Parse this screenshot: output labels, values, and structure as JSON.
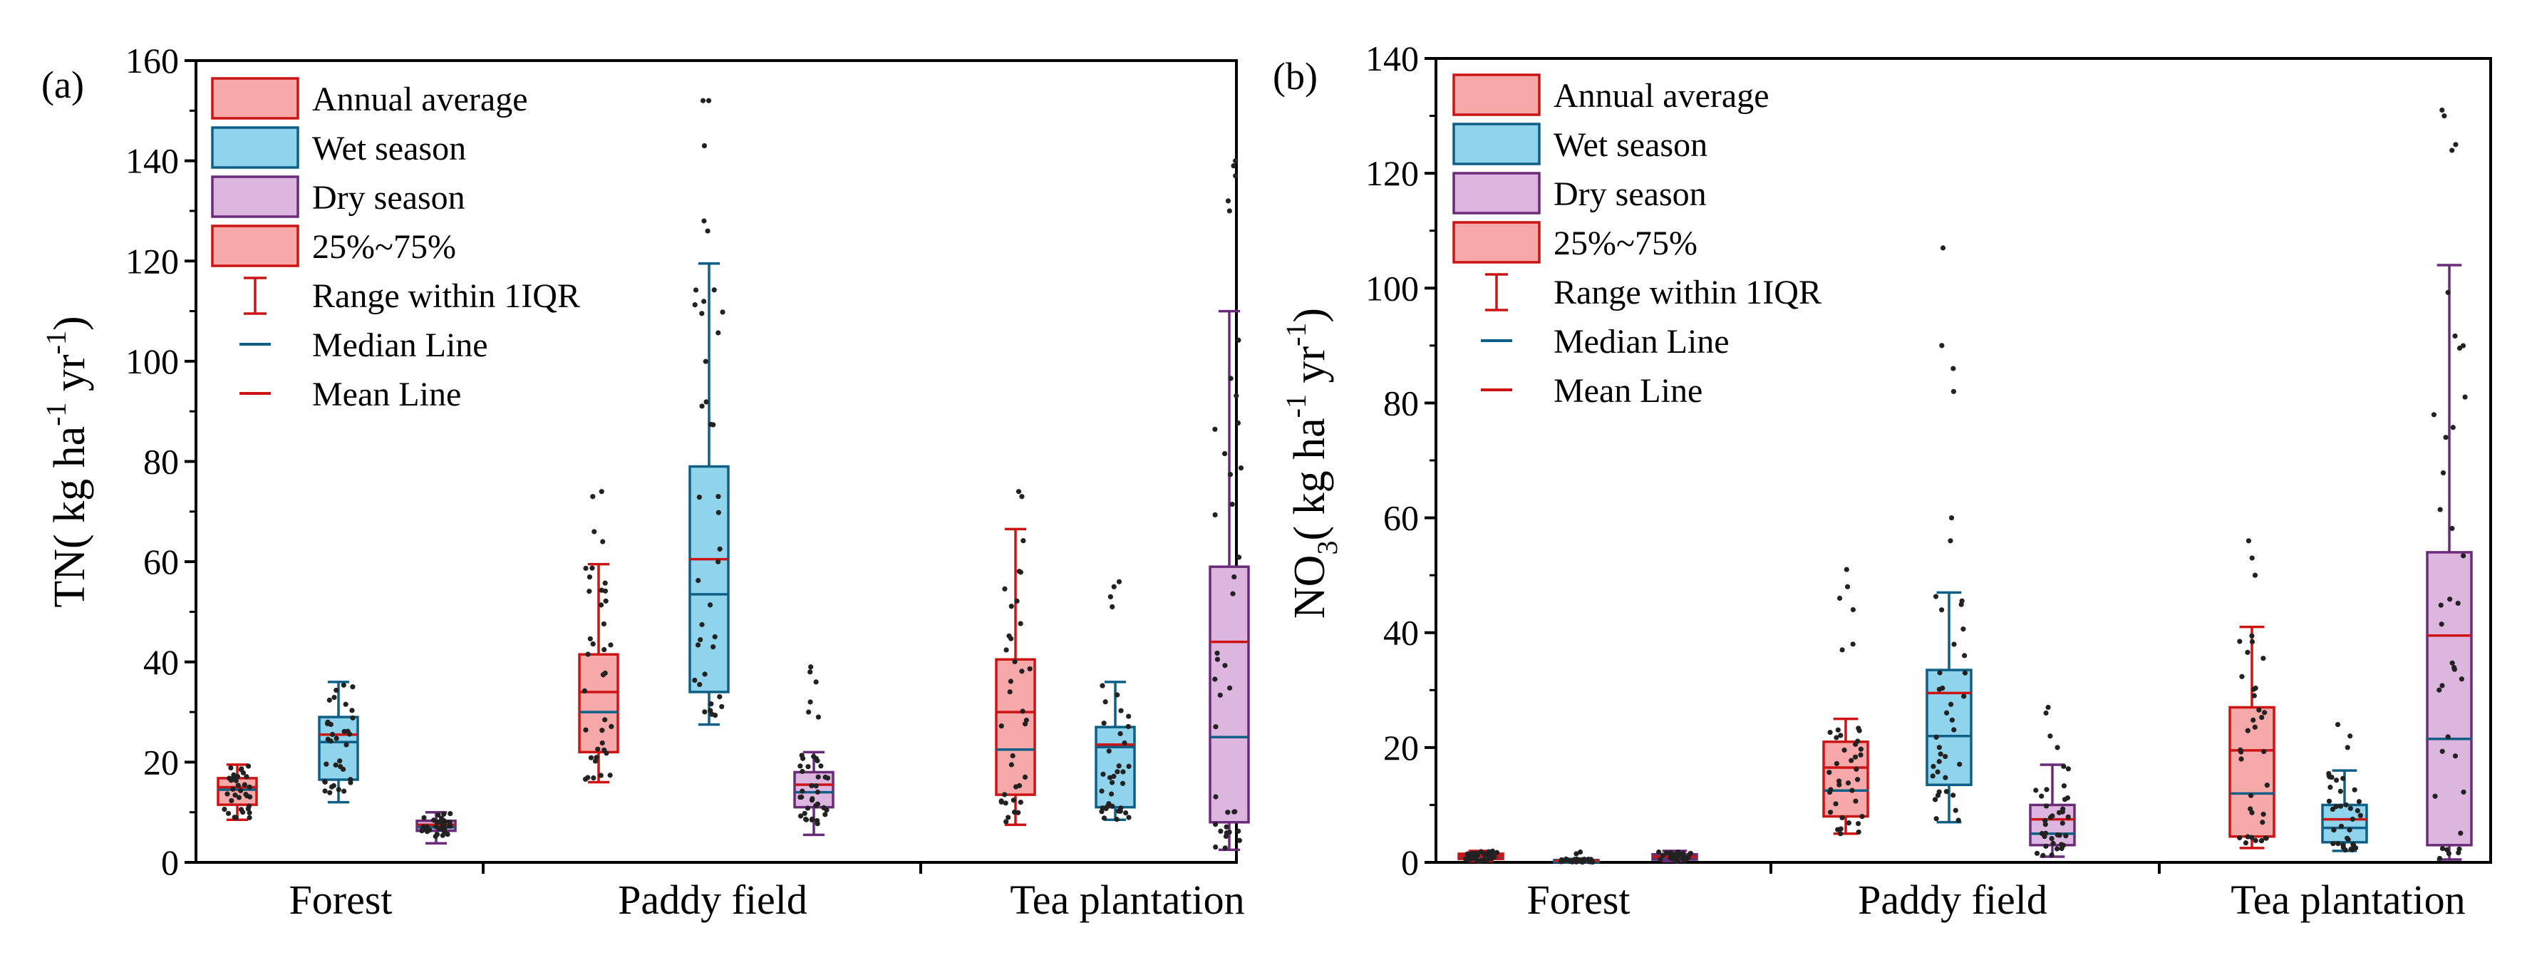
{
  "colors": {
    "annual_fill": "#f7a8a8",
    "annual_edge": "#cc1414",
    "wet_fill": "#8fd3ec",
    "wet_edge": "#0e5f86",
    "dry_fill": "#dcb6df",
    "dry_edge": "#6a2c79",
    "median": "#0e5f86",
    "mean": "#cc1414",
    "point": "#222222"
  },
  "legend": {
    "annual": "Annual average",
    "wet": "Wet season",
    "dry": "Dry season",
    "iqr": "25%~75%",
    "range": "Range within 1IQR",
    "median": "Median Line",
    "mean": "Mean Line"
  },
  "chart_data": [
    {
      "panel_label": "(a)",
      "type": "box",
      "ylabel": {
        "main": "TN( kg ha",
        "sup1": "-1",
        "mid": " yr",
        "sup2": "-1",
        "end": ")"
      },
      "ylim": [
        0,
        160
      ],
      "yticks": [
        0,
        20,
        40,
        60,
        80,
        100,
        120,
        140,
        160
      ],
      "categories": [
        "Forest",
        "Paddy field",
        "Tea plantation"
      ],
      "series": [
        "Annual average",
        "Wet season",
        "Dry season"
      ],
      "boxes": [
        {
          "cat": 0,
          "series": 0,
          "q1": 11.5,
          "median": 14.5,
          "mean": 15.0,
          "q3": 16.8,
          "wlo": 8.5,
          "whi": 19.5,
          "outliers": []
        },
        {
          "cat": 0,
          "series": 1,
          "q1": 16.5,
          "median": 24.0,
          "mean": 25.5,
          "q3": 29.0,
          "wlo": 12.0,
          "whi": 36.0,
          "outliers": []
        },
        {
          "cat": 0,
          "series": 2,
          "q1": 6.3,
          "median": 7.0,
          "mean": 7.5,
          "q3": 8.3,
          "wlo": 3.8,
          "whi": 10.0,
          "outliers": []
        },
        {
          "cat": 1,
          "series": 0,
          "q1": 22.0,
          "median": 30.0,
          "mean": 34.0,
          "q3": 41.5,
          "wlo": 16.0,
          "whi": 59.5,
          "outliers": [
            64,
            66,
            73,
            74
          ]
        },
        {
          "cat": 1,
          "series": 1,
          "q1": 34.0,
          "median": 53.5,
          "mean": 60.5,
          "q3": 79.0,
          "wlo": 27.5,
          "whi": 119.5,
          "outliers": [
            126,
            128,
            143,
            152,
            152
          ]
        },
        {
          "cat": 1,
          "series": 2,
          "q1": 11.0,
          "median": 14.0,
          "mean": 15.5,
          "q3": 18.0,
          "wlo": 5.5,
          "whi": 22.0,
          "outliers": [
            29,
            30,
            32,
            36,
            38,
            39
          ]
        },
        {
          "cat": 2,
          "series": 0,
          "q1": 13.5,
          "median": 22.5,
          "mean": 30.0,
          "q3": 40.5,
          "wlo": 7.5,
          "whi": 66.5,
          "outliers": [
            73,
            74
          ]
        },
        {
          "cat": 2,
          "series": 1,
          "q1": 11.0,
          "median": 23.0,
          "mean": 23.5,
          "q3": 27.0,
          "wlo": 8.5,
          "whi": 36.0,
          "outliers": [
            51,
            53,
            55,
            56
          ]
        },
        {
          "cat": 2,
          "series": 2,
          "q1": 8.0,
          "median": 25.0,
          "mean": 44.0,
          "q3": 59.0,
          "wlo": 2.5,
          "whi": 110.0,
          "outliers": [
            130,
            132,
            137,
            139,
            140
          ]
        }
      ]
    },
    {
      "panel_label": "(b)",
      "type": "box",
      "ylabel": {
        "main": "NO",
        "sub": "3",
        "mid": "( kg ha",
        "sup1": "-1",
        "mid2": " yr",
        "sup2": "-1",
        "end": ")"
      },
      "ylim": [
        0,
        140
      ],
      "yticks": [
        0,
        20,
        40,
        60,
        80,
        100,
        120,
        140
      ],
      "categories": [
        "Forest",
        "Paddy field",
        "Tea plantation"
      ],
      "series": [
        "Annual average",
        "Wet season",
        "Dry season"
      ],
      "boxes": [
        {
          "cat": 0,
          "series": 0,
          "q1": 0.6,
          "median": 1.0,
          "mean": 1.1,
          "q3": 1.5,
          "wlo": 0.2,
          "whi": 2.0,
          "outliers": []
        },
        {
          "cat": 0,
          "series": 1,
          "q1": 0.1,
          "median": 0.2,
          "mean": 0.3,
          "q3": 0.4,
          "wlo": 0.0,
          "whi": 0.6,
          "outliers": [
            1.5,
            1.8
          ]
        },
        {
          "cat": 0,
          "series": 2,
          "q1": 0.5,
          "median": 0.9,
          "mean": 1.0,
          "q3": 1.4,
          "wlo": 0.2,
          "whi": 2.0,
          "outliers": []
        },
        {
          "cat": 1,
          "series": 0,
          "q1": 8.0,
          "median": 12.5,
          "mean": 16.5,
          "q3": 21.0,
          "wlo": 5.0,
          "whi": 25.0,
          "outliers": [
            37,
            38,
            44,
            46,
            48,
            51
          ]
        },
        {
          "cat": 1,
          "series": 1,
          "q1": 13.5,
          "median": 22.0,
          "mean": 29.5,
          "q3": 33.5,
          "wlo": 7.0,
          "whi": 47.0,
          "outliers": [
            56,
            60,
            82,
            86,
            90,
            107
          ]
        },
        {
          "cat": 1,
          "series": 2,
          "q1": 3.0,
          "median": 5.0,
          "mean": 7.5,
          "q3": 10.0,
          "wlo": 1.0,
          "whi": 17.0,
          "outliers": [
            20,
            22,
            26,
            27
          ]
        },
        {
          "cat": 2,
          "series": 0,
          "q1": 4.5,
          "median": 12.0,
          "mean": 19.5,
          "q3": 27.0,
          "wlo": 2.5,
          "whi": 41.0,
          "outliers": [
            50,
            53,
            56
          ]
        },
        {
          "cat": 2,
          "series": 1,
          "q1": 3.5,
          "median": 6.0,
          "mean": 7.5,
          "q3": 10.0,
          "wlo": 2.0,
          "whi": 16.0,
          "outliers": [
            20,
            22,
            24
          ]
        },
        {
          "cat": 2,
          "series": 2,
          "q1": 3.0,
          "median": 21.5,
          "mean": 39.5,
          "q3": 54.0,
          "wlo": 0.5,
          "whi": 104.0,
          "outliers": [
            124,
            125,
            130,
            131
          ]
        }
      ]
    }
  ]
}
